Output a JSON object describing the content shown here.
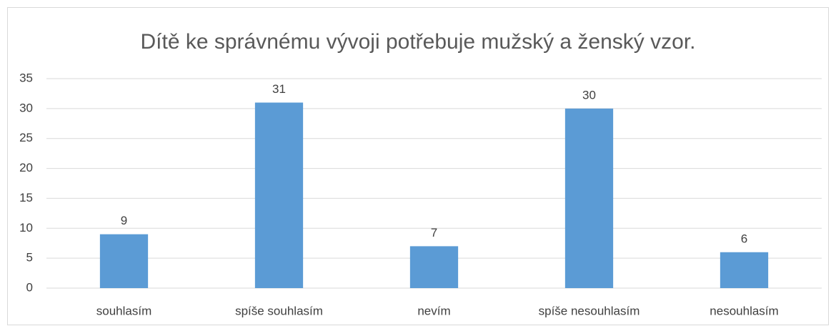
{
  "chart_data": {
    "type": "bar",
    "title": "Dítě ke správnému vývoji potřebuje mužský a ženský vzor.",
    "categories": [
      "souhlasím",
      "spíše souhlasím",
      "nevím",
      "spíše nesouhlasím",
      "nesouhlasím"
    ],
    "values": [
      9,
      31,
      7,
      30,
      6
    ],
    "color": "#5b9bd5",
    "ylim": [
      0,
      35
    ],
    "yticks": [
      0,
      5,
      10,
      15,
      20,
      25,
      30,
      35
    ],
    "grid": true
  }
}
